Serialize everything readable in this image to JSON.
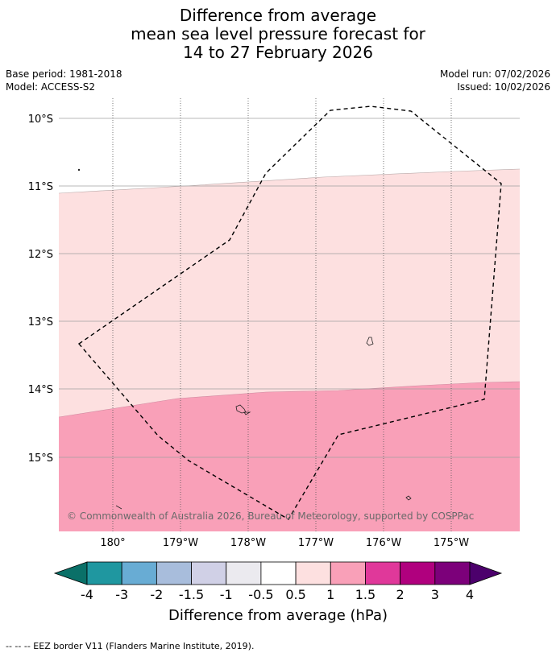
{
  "title": {
    "line1": "Difference from average",
    "line2": "mean sea level pressure forecast for",
    "line3": "14 to 27 February 2026"
  },
  "info": {
    "base_period": "Base period: 1981-2018",
    "model": "Model: ACCESS-S2",
    "model_run": "Model run: 07/02/2026",
    "issued": "Issued: 10/02/2026"
  },
  "map": {
    "lat_labels": [
      "10°S",
      "11°S",
      "12°S",
      "13°S",
      "14°S",
      "15°S"
    ],
    "lon_labels": [
      "180°",
      "179°W",
      "178°W",
      "177°W",
      "176°W",
      "175°W"
    ],
    "copyright": "© Commonwealth of Australia 2026, Bureau of Meteorology, supported by COSPPac",
    "region_colors": {
      "band_0_5_to_1": "#fde0e0",
      "band_1_to_1_5": "#f9a0b8"
    }
  },
  "colorbar": {
    "ticks": [
      "-4",
      "-3",
      "-2",
      "-1.5",
      "-1",
      "-0.5",
      "0.5",
      "1",
      "1.5",
      "2",
      "3",
      "4"
    ],
    "colors": [
      "#0a7068",
      "#1f97a0",
      "#68acd4",
      "#a8bddc",
      "#d0d0e6",
      "#ebeaef",
      "#ffffff",
      "#fde0e0",
      "#f9a0b8",
      "#e0389a",
      "#b0007e",
      "#7c007a",
      "#4c006c"
    ],
    "label": "Difference from average (hPa)"
  },
  "footer": {
    "legend": "--  --  -- EEZ border V11 (Flanders Marine Institute, 2019)."
  }
}
